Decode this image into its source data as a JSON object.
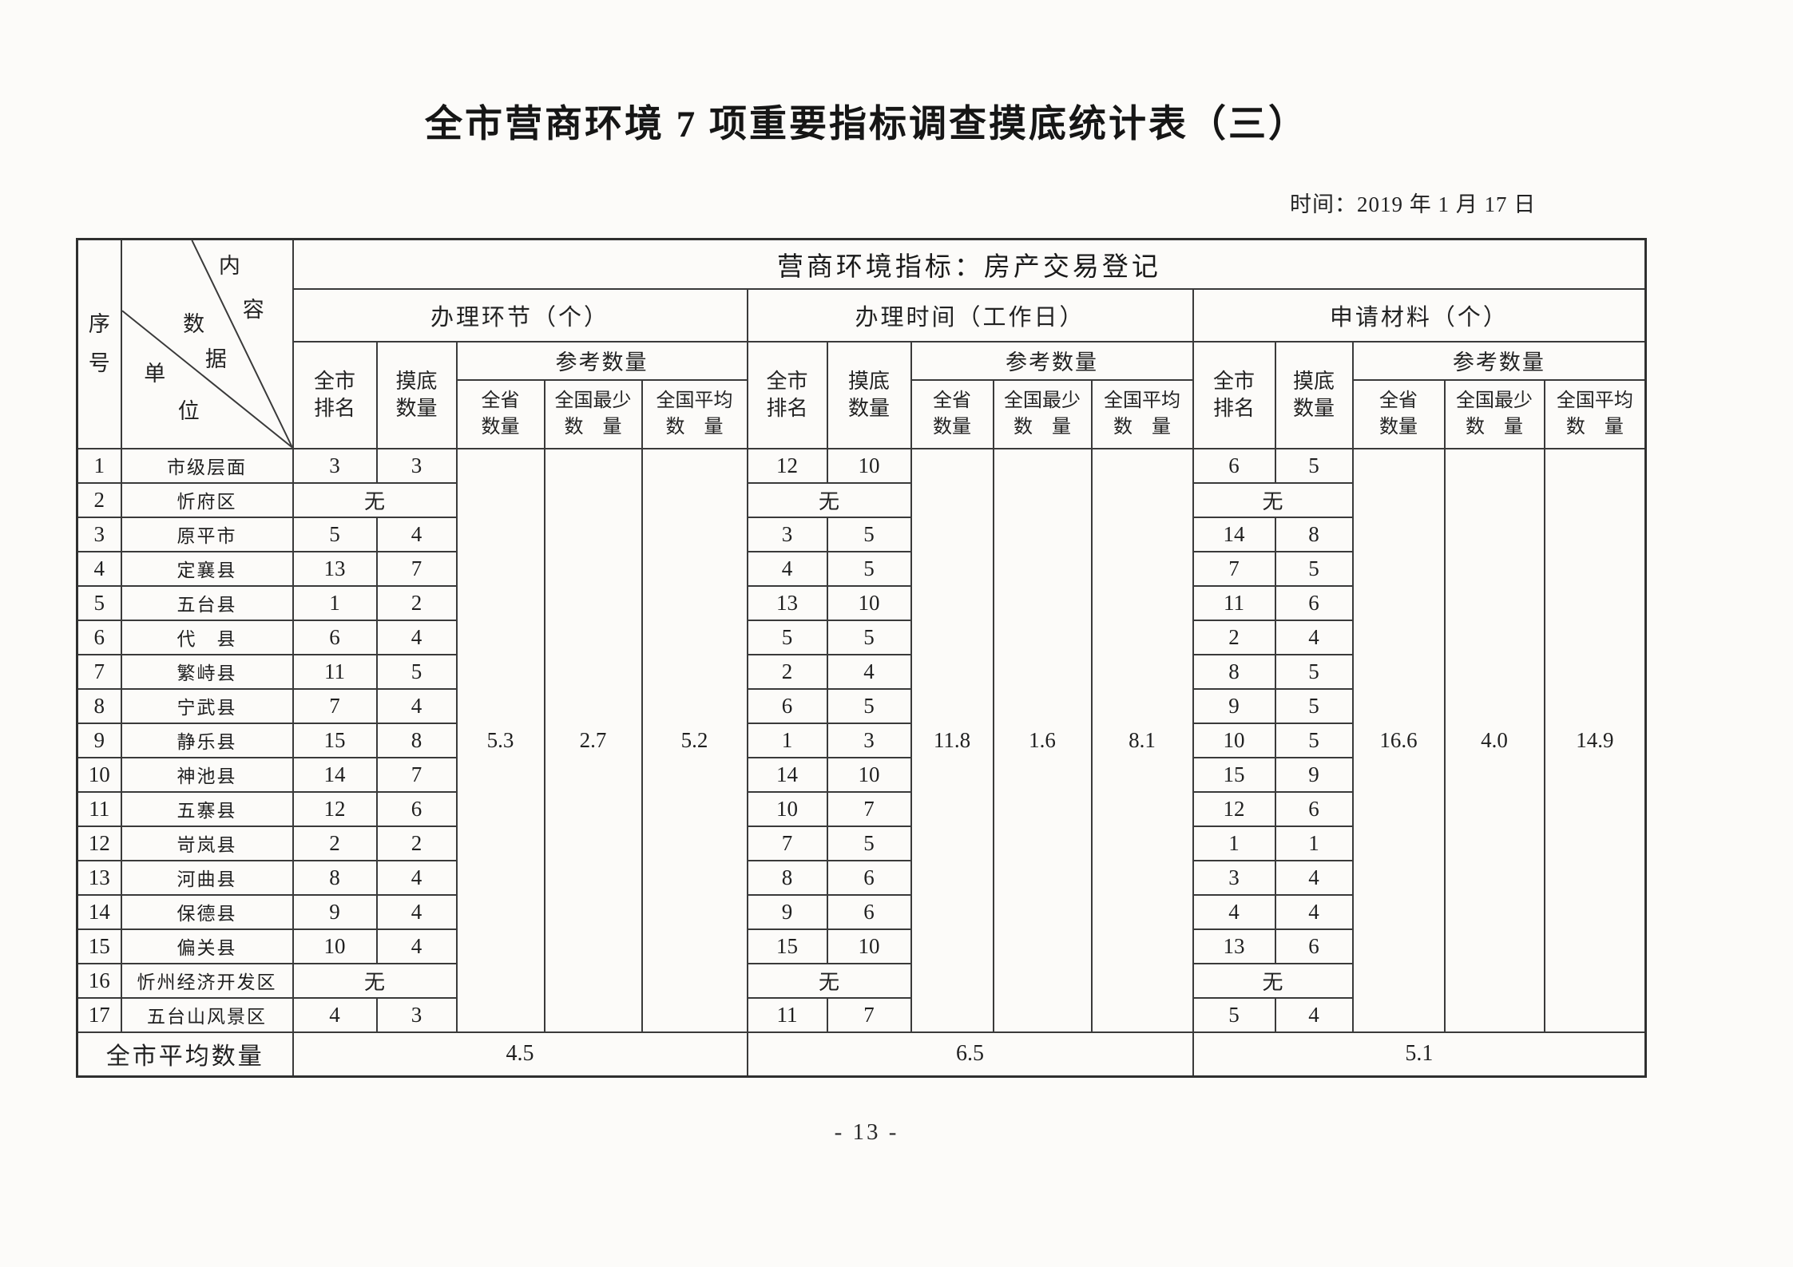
{
  "page": {
    "title": "全市营商环境 7 项重要指标调查摸底统计表（三）",
    "date_label": "时间：2019 年 1 月 17 日",
    "page_number": "- 13 -"
  },
  "table": {
    "corner": {
      "seq_label": "序\n号",
      "diag_chars": [
        "内",
        "容",
        "数",
        "据",
        "单",
        "位"
      ]
    },
    "indicator_header": "营商环境指标：房产交易登记",
    "labels": {
      "rank": "全市\n排名",
      "survey": "摸底\n数量",
      "ref": "参考数量",
      "ref_cols": [
        "全省\n数量",
        "全国最少\n数　量",
        "全国平均\n数　量"
      ]
    },
    "no_data_text": "无",
    "average_label": "全市平均数量",
    "sections": [
      {
        "title": "办理环节（个）",
        "ref_values": [
          "5.3",
          "2.7",
          "5.2"
        ],
        "average": "4.5"
      },
      {
        "title": "办理时间（工作日）",
        "ref_values": [
          "11.8",
          "1.6",
          "8.1"
        ],
        "average": "6.5"
      },
      {
        "title": "申请材料（个）",
        "ref_values": [
          "16.6",
          "4.0",
          "14.9"
        ],
        "average": "5.1"
      }
    ],
    "rows": [
      {
        "no": "1",
        "unit": "市级层面",
        "cells": [
          [
            "3",
            "3"
          ],
          [
            "12",
            "10"
          ],
          [
            "6",
            "5"
          ]
        ],
        "bold": [
          [
            0,
            0
          ],
          [
            0,
            0
          ],
          [
            0,
            0
          ]
        ]
      },
      {
        "no": "2",
        "unit": "忻府区",
        "none": true
      },
      {
        "no": "3",
        "unit": "原平市",
        "cells": [
          [
            "5",
            "4"
          ],
          [
            "3",
            "5"
          ],
          [
            "14",
            "8"
          ]
        ],
        "bold": [
          [
            0,
            0
          ],
          [
            0,
            0
          ],
          [
            0,
            1
          ]
        ]
      },
      {
        "no": "4",
        "unit": "定襄县",
        "cells": [
          [
            "13",
            "7"
          ],
          [
            "4",
            "5"
          ],
          [
            "7",
            "5"
          ]
        ],
        "bold": [
          [
            0,
            0
          ],
          [
            0,
            0
          ],
          [
            0,
            0
          ]
        ]
      },
      {
        "no": "5",
        "unit": "五台县",
        "cells": [
          [
            "1",
            "2"
          ],
          [
            "13",
            "10"
          ],
          [
            "11",
            "6"
          ]
        ],
        "bold": [
          [
            1,
            1
          ],
          [
            0,
            0
          ],
          [
            0,
            0
          ]
        ]
      },
      {
        "no": "6",
        "unit": "代　县",
        "cells": [
          [
            "6",
            "4"
          ],
          [
            "5",
            "5"
          ],
          [
            "2",
            "4"
          ]
        ],
        "bold": [
          [
            0,
            0
          ],
          [
            0,
            0
          ],
          [
            0,
            0
          ]
        ]
      },
      {
        "no": "7",
        "unit": "繁峙县",
        "cells": [
          [
            "11",
            "5"
          ],
          [
            "2",
            "4"
          ],
          [
            "8",
            "5"
          ]
        ],
        "bold": [
          [
            0,
            0
          ],
          [
            0,
            0
          ],
          [
            0,
            0
          ]
        ]
      },
      {
        "no": "8",
        "unit": "宁武县",
        "cells": [
          [
            "7",
            "4"
          ],
          [
            "6",
            "5"
          ],
          [
            "9",
            "5"
          ]
        ],
        "bold": [
          [
            0,
            0
          ],
          [
            0,
            0
          ],
          [
            0,
            0
          ]
        ]
      },
      {
        "no": "9",
        "unit": "静乐县",
        "cells": [
          [
            "15",
            "8"
          ],
          [
            "1",
            "3"
          ],
          [
            "10",
            "5"
          ]
        ],
        "bold": [
          [
            1,
            1
          ],
          [
            1,
            1
          ],
          [
            0,
            0
          ]
        ]
      },
      {
        "no": "10",
        "unit": "神池县",
        "cells": [
          [
            "14",
            "7"
          ],
          [
            "14",
            "10"
          ],
          [
            "15",
            "9"
          ]
        ],
        "bold": [
          [
            0,
            0
          ],
          [
            0,
            0
          ],
          [
            1,
            1
          ]
        ]
      },
      {
        "no": "11",
        "unit": "五寨县",
        "cells": [
          [
            "12",
            "6"
          ],
          [
            "10",
            "7"
          ],
          [
            "12",
            "6"
          ]
        ],
        "bold": [
          [
            0,
            0
          ],
          [
            0,
            0
          ],
          [
            0,
            0
          ]
        ]
      },
      {
        "no": "12",
        "unit": "岢岚县",
        "cells": [
          [
            "2",
            "2"
          ],
          [
            "7",
            "5"
          ],
          [
            "1",
            "1"
          ]
        ],
        "bold": [
          [
            0,
            0
          ],
          [
            0,
            0
          ],
          [
            1,
            1
          ]
        ]
      },
      {
        "no": "13",
        "unit": "河曲县",
        "cells": [
          [
            "8",
            "4"
          ],
          [
            "8",
            "6"
          ],
          [
            "3",
            "4"
          ]
        ],
        "bold": [
          [
            1,
            0
          ],
          [
            0,
            0
          ],
          [
            0,
            0
          ]
        ]
      },
      {
        "no": "14",
        "unit": "保德县",
        "cells": [
          [
            "9",
            "4"
          ],
          [
            "9",
            "6"
          ],
          [
            "4",
            "4"
          ]
        ],
        "bold": [
          [
            0,
            0
          ],
          [
            0,
            0
          ],
          [
            0,
            0
          ]
        ]
      },
      {
        "no": "15",
        "unit": "偏关县",
        "cells": [
          [
            "10",
            "4"
          ],
          [
            "15",
            "10"
          ],
          [
            "13",
            "6"
          ]
        ],
        "bold": [
          [
            0,
            0
          ],
          [
            1,
            1
          ],
          [
            0,
            0
          ]
        ]
      },
      {
        "no": "16",
        "unit": "忻州经济开发区",
        "none": true
      },
      {
        "no": "17",
        "unit": "五台山风景区",
        "cells": [
          [
            "4",
            "3"
          ],
          [
            "11",
            "7"
          ],
          [
            "5",
            "4"
          ]
        ],
        "bold": [
          [
            0,
            0
          ],
          [
            0,
            0
          ],
          [
            0,
            0
          ]
        ]
      }
    ]
  }
}
